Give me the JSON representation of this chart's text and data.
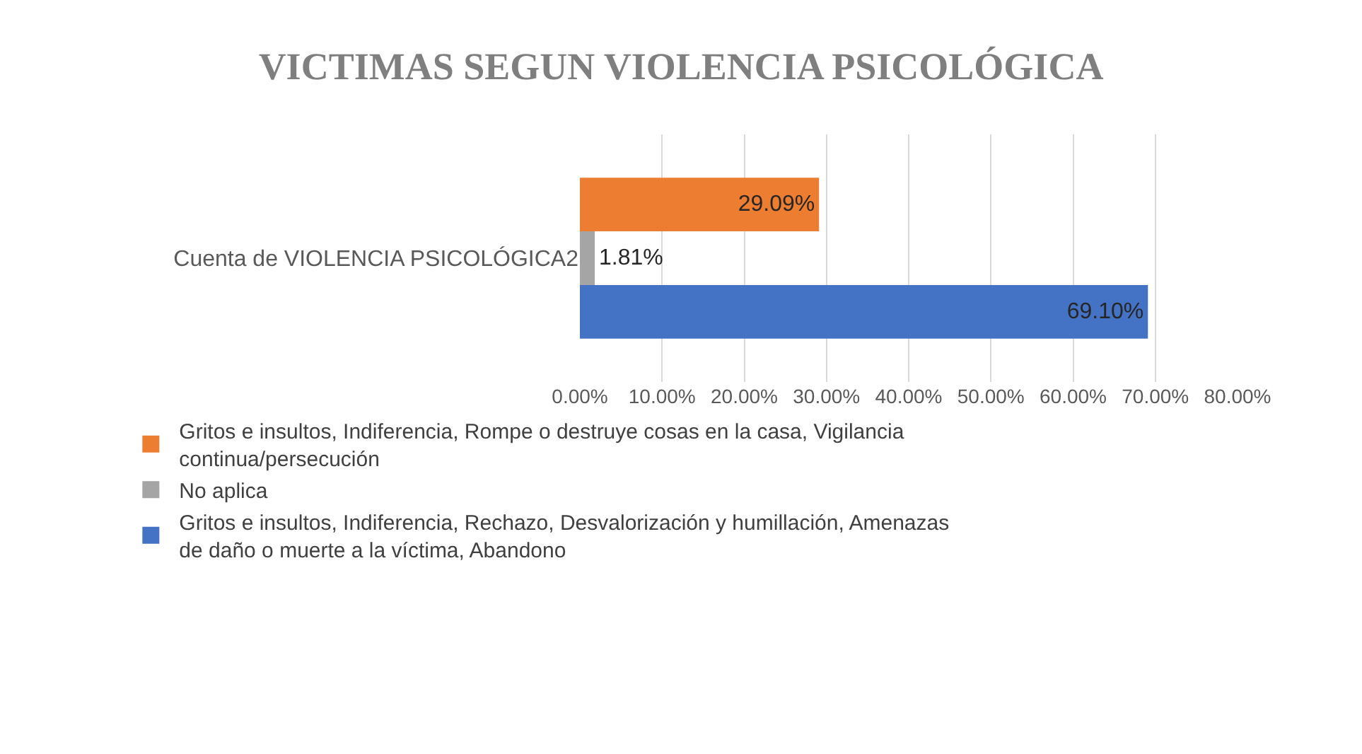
{
  "chart_data": {
    "type": "bar",
    "orientation": "horizontal",
    "title": "VICTIMAS SEGUN VIOLENCIA PSICOLÓGICA",
    "categories": [
      "Cuenta de VIOLENCIA PSICOLÓGICA2"
    ],
    "series": [
      {
        "name": "Gritos e insultos, Indiferencia, Rompe o destruye cosas en la casa, Vigilancia continua/persecución",
        "color": "#ed7d31",
        "values": [
          29.09
        ],
        "value_labels": [
          "29.09%"
        ]
      },
      {
        "name": "No aplica",
        "color": "#a5a5a5",
        "values": [
          1.81
        ],
        "value_labels": [
          "1.81%"
        ]
      },
      {
        "name": "Gritos e insultos, Indiferencia, Rechazo, Desvalorización y humillación, Amenazas de daño o muerte a la víctima, Abandono",
        "color": "#4472c4",
        "values": [
          69.1
        ],
        "value_labels": [
          "69.10%"
        ]
      }
    ],
    "xlim": [
      0,
      80
    ],
    "xticks": [
      {
        "value": 0,
        "label": "0.00%"
      },
      {
        "value": 10,
        "label": "10.00%"
      },
      {
        "value": 20,
        "label": "20.00%"
      },
      {
        "value": 30,
        "label": "30.00%"
      },
      {
        "value": 40,
        "label": "40.00%"
      },
      {
        "value": 50,
        "label": "50.00%"
      },
      {
        "value": 60,
        "label": "60.00%"
      },
      {
        "value": 70,
        "label": "70.00%"
      },
      {
        "value": 80,
        "label": "80.00%"
      }
    ],
    "grid": "x",
    "legend": "bottom"
  }
}
